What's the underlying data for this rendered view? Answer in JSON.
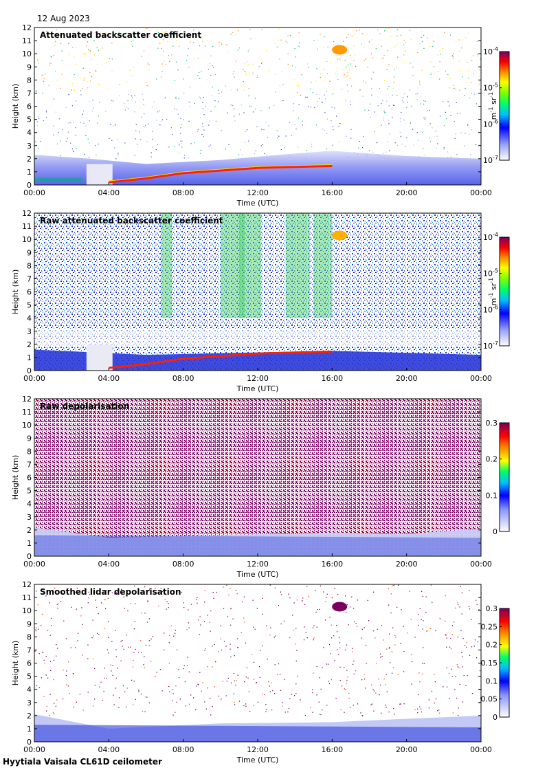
{
  "date": "12 Aug 2023",
  "site": "Hyytiala Vaisala CL61D ceilometer",
  "chart_data": [
    {
      "type": "heatmap",
      "title": "Attenuated backscatter coefficient",
      "xlabel": "Time (UTC)",
      "ylabel": "Height (km)",
      "xticks": [
        "00:00",
        "04:00",
        "08:00",
        "12:00",
        "16:00",
        "20:00",
        "00:00"
      ],
      "xlim": [
        0,
        24
      ],
      "yticks": [
        "0",
        "1",
        "2",
        "3",
        "4",
        "5",
        "6",
        "7",
        "8",
        "9",
        "10",
        "11",
        "12"
      ],
      "ylim": [
        0,
        12
      ],
      "colorbar": {
        "scale": "log",
        "ticks": [
          "10-7",
          "10-6",
          "10-5",
          "10-4"
        ],
        "tick_values": [
          1e-07,
          1e-06,
          1e-05,
          0.0001
        ],
        "unit": "m-1 sr-1"
      },
      "features": {
        "boundary_layer_top_km": [
          [
            0,
            2.3
          ],
          [
            3,
            2.0
          ],
          [
            6,
            1.6
          ],
          [
            10,
            1.9
          ],
          [
            14,
            2.4
          ],
          [
            16,
            2.6
          ],
          [
            20,
            2.2
          ],
          [
            24,
            2.0
          ]
        ],
        "cloud_base_km": [
          [
            4.0,
            0.2
          ],
          [
            6.0,
            0.5
          ],
          [
            8.0,
            0.9
          ],
          [
            12.0,
            1.3
          ],
          [
            16.0,
            1.45
          ]
        ],
        "high_cloud": {
          "time_h": 16.4,
          "height_km": 10.3
        }
      }
    },
    {
      "type": "heatmap",
      "title": "Raw attenuated backscatter coefficient",
      "xlabel": "Time (UTC)",
      "ylabel": "Height (km)",
      "xticks": [
        "00:00",
        "04:00",
        "08:00",
        "12:00",
        "16:00",
        "20:00",
        "00:00"
      ],
      "xlim": [
        0,
        24
      ],
      "yticks": [
        "0",
        "1",
        "2",
        "3",
        "4",
        "5",
        "6",
        "7",
        "8",
        "9",
        "10",
        "11",
        "12"
      ],
      "ylim": [
        0,
        12
      ],
      "colorbar": {
        "scale": "log",
        "ticks": [
          "10-7",
          "10-6",
          "10-5",
          "10-4"
        ],
        "tick_values": [
          1e-07,
          1e-06,
          1e-05,
          0.0001
        ],
        "unit": "m-1 sr-1"
      }
    },
    {
      "type": "heatmap",
      "title": "Raw depolarisation",
      "xlabel": "Time (UTC)",
      "ylabel": "Height (km)",
      "xticks": [
        "00:00",
        "04:00",
        "08:00",
        "12:00",
        "16:00",
        "20:00",
        "00:00"
      ],
      "xlim": [
        0,
        24
      ],
      "yticks": [
        "0",
        "1",
        "2",
        "3",
        "4",
        "5",
        "6",
        "7",
        "8",
        "9",
        "10",
        "11",
        "12"
      ],
      "ylim": [
        0,
        12
      ],
      "colorbar": {
        "scale": "linear",
        "ticks": [
          "0",
          "0.1",
          "0.2",
          "0.3"
        ],
        "tick_values": [
          0,
          0.1,
          0.2,
          0.3
        ],
        "unit": ""
      }
    },
    {
      "type": "heatmap",
      "title": "Smoothed lidar depolarisation",
      "xlabel": "Time (UTC)",
      "ylabel": "Height (km)",
      "xticks": [
        "00:00",
        "04:00",
        "08:00",
        "12:00",
        "16:00",
        "20:00",
        "00:00"
      ],
      "xlim": [
        0,
        24
      ],
      "yticks": [
        "0",
        "1",
        "2",
        "3",
        "4",
        "5",
        "6",
        "7",
        "8",
        "9",
        "10",
        "11",
        "12"
      ],
      "ylim": [
        0,
        12
      ],
      "colorbar": {
        "scale": "linear",
        "ticks": [
          "0",
          "0.05",
          "0.1",
          "0.15",
          "0.2",
          "0.25",
          "0.3"
        ],
        "tick_values": [
          0,
          0.05,
          0.1,
          0.15,
          0.2,
          0.25,
          0.3
        ],
        "unit": ""
      }
    }
  ]
}
